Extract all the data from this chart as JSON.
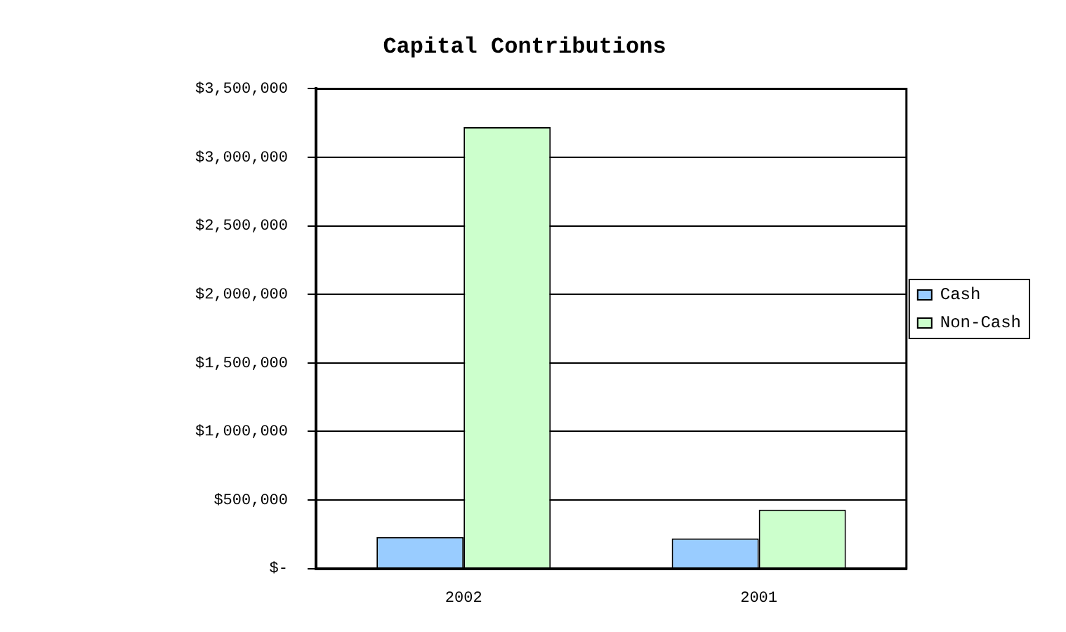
{
  "chart_data": {
    "type": "bar",
    "title": "Capital Contributions",
    "categories": [
      "2002",
      "2001"
    ],
    "series": [
      {
        "name": "Cash",
        "color": "#99ccff",
        "values": [
          230000,
          220000
        ]
      },
      {
        "name": "Non-Cash",
        "color": "#ccffcc",
        "values": [
          3220000,
          430000
        ]
      }
    ],
    "ylim": [
      0,
      3500000
    ],
    "yticks": [
      {
        "value": 0,
        "label": "$-"
      },
      {
        "value": 500000,
        "label": "$500,000"
      },
      {
        "value": 1000000,
        "label": "$1,000,000"
      },
      {
        "value": 1500000,
        "label": "$1,500,000"
      },
      {
        "value": 2000000,
        "label": "$2,000,000"
      },
      {
        "value": 2500000,
        "label": "$2,500,000"
      },
      {
        "value": 3000000,
        "label": "$3,000,000"
      },
      {
        "value": 3500000,
        "label": "$3,500,000"
      }
    ],
    "grid": "y",
    "legend": "right"
  }
}
